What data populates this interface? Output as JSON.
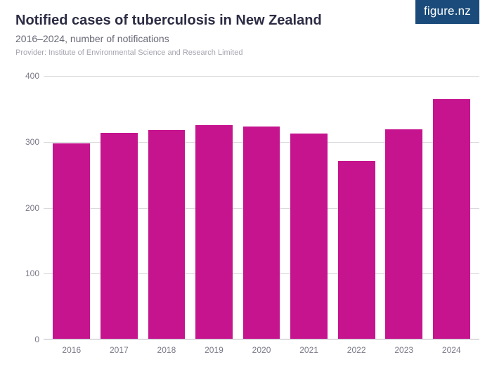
{
  "logo": {
    "text": "figure.nz"
  },
  "header": {
    "title": "Notified cases of tuberculosis in New Zealand",
    "subtitle": "2016–2024, number of notifications",
    "provider": "Provider: Institute of Environmental Science and Research Limited"
  },
  "chart": {
    "type": "bar",
    "categories": [
      "2016",
      "2017",
      "2018",
      "2019",
      "2020",
      "2021",
      "2022",
      "2023",
      "2024"
    ],
    "values": [
      298,
      314,
      318,
      325,
      323,
      313,
      271,
      319,
      365
    ],
    "bar_color": "#c5148e",
    "ylim": [
      0,
      400
    ],
    "yticks": [
      0,
      100,
      200,
      300,
      400
    ],
    "gridline_color": "#d8d8dc",
    "baseline_color": "#b8b8c0",
    "background_color": "#ffffff",
    "title_color": "#2c2c44",
    "subtitle_color": "#6a6a78",
    "provider_color": "#a5a5b0",
    "axis_label_color": "#7a7a88",
    "title_fontsize": 20,
    "subtitle_fontsize": 14,
    "provider_fontsize": 11,
    "axis_fontsize": 12,
    "bar_width_ratio": 0.78
  }
}
